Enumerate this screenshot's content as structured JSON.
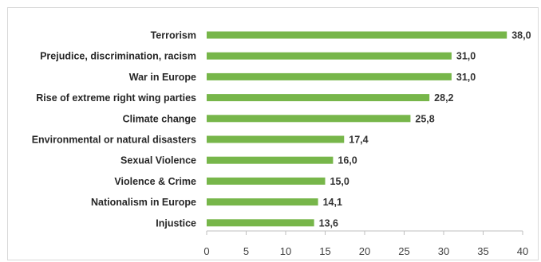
{
  "chart_data": {
    "type": "bar",
    "orientation": "horizontal",
    "categories": [
      "Terrorism",
      "Prejudice, discrimination, racism",
      "War in Europe",
      "Rise of extreme right wing parties",
      "Climate change",
      "Environmental or natural disasters",
      "Sexual Violence",
      "Violence & Crime",
      "Nationalism in Europe",
      "Injustice"
    ],
    "values": [
      38.0,
      31.0,
      31.0,
      28.2,
      25.8,
      17.4,
      16.0,
      15.0,
      14.1,
      13.6
    ],
    "value_labels": [
      "38,0",
      "31,0",
      "31,0",
      "28,2",
      "25,8",
      "17,4",
      "16,0",
      "15,0",
      "14,1",
      "13,6"
    ],
    "xticks": [
      "0",
      "5",
      "10",
      "15",
      "20",
      "25",
      "30",
      "35",
      "40"
    ],
    "xlim": [
      0,
      40
    ],
    "grid": false,
    "legend": "none",
    "bar_color": "#77b64a",
    "title": "",
    "xlabel": "",
    "ylabel": ""
  }
}
